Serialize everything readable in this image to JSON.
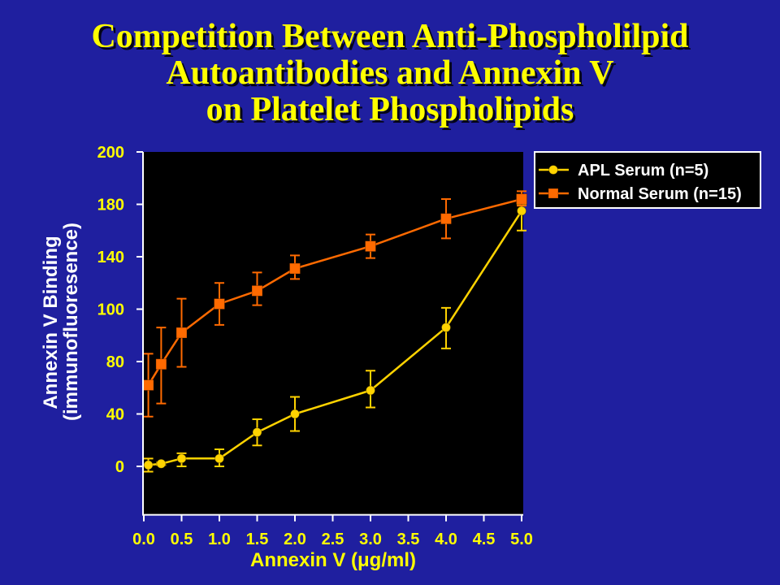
{
  "colors": {
    "background": "#1f1f9f",
    "title": "#ffff00",
    "tick_labels": "#ffff00",
    "x_axis_title": "#ffff00",
    "y_axis_title": "#ffffff",
    "plot_background": "#000000",
    "axes": "#ffffff",
    "legend_background": "#000000",
    "legend_border": "#ffffff",
    "legend_text": "#ffffff"
  },
  "chart_data": {
    "type": "line",
    "title": [
      "Competition Between Anti-Phospholilpid",
      "Autoantibodies and Annexin V",
      "on Platelet Phospholipids"
    ],
    "xlabel": "Annexin V (μg/ml)",
    "ylabel": [
      "Annexin V Binding",
      "(immunofluoresence)"
    ],
    "xlim": [
      0,
      5
    ],
    "ylim": [
      -37,
      200
    ],
    "x_ticks": [
      "0.0",
      "0.5",
      "1.0",
      "1.5",
      "2.0",
      "2.5",
      "3.0",
      "3.5",
      "4.0",
      "4.5",
      "5.0"
    ],
    "y_ticks": [
      "0",
      "40",
      "80",
      "100",
      "140",
      "180",
      "200"
    ],
    "grid": false,
    "legend_position": "top-right",
    "series": [
      {
        "name": "APL Serum (n=5)",
        "color": "#ffd300",
        "marker": "circle",
        "x": [
          0.06,
          0.23,
          0.5,
          1.0,
          1.5,
          2.0,
          3.0,
          4.0,
          5.0
        ],
        "y": [
          1,
          2,
          6,
          6,
          26,
          40,
          58,
          93,
          175
        ],
        "y_low": [
          -4,
          1,
          0,
          0,
          16,
          27,
          45,
          85,
          160
        ],
        "y_high": [
          6,
          3,
          10,
          13,
          36,
          53,
          73,
          101,
          180
        ]
      },
      {
        "name": "Normal Serum (n=15)",
        "color": "#ff6a00",
        "marker": "square",
        "x": [
          0.06,
          0.23,
          0.5,
          1.0,
          1.5,
          2.0,
          3.0,
          4.0,
          5.0
        ],
        "y": [
          62,
          78,
          91,
          104,
          114,
          131,
          148,
          169,
          182
        ],
        "y_low": [
          38,
          48,
          76,
          94,
          103,
          123,
          139,
          154,
          179
        ],
        "y_high": [
          83,
          93,
          108,
          120,
          128,
          141,
          157,
          182,
          185
        ]
      }
    ]
  }
}
